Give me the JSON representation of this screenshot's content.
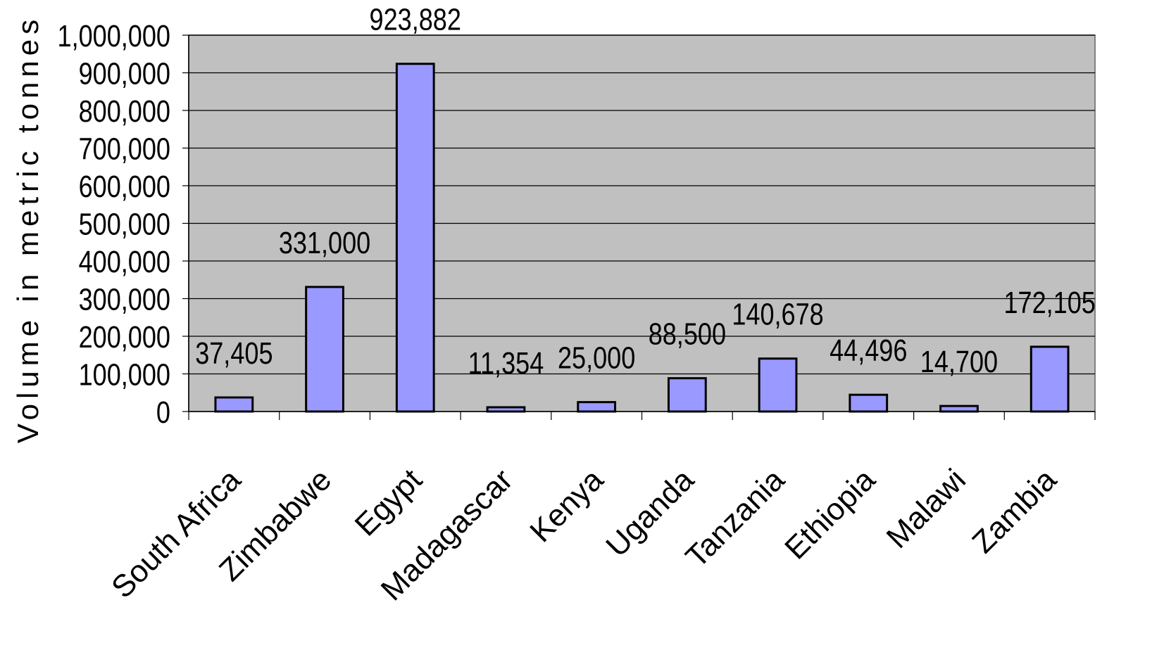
{
  "chart_data": {
    "type": "bar",
    "title": "",
    "xlabel": "",
    "ylabel": "Volume in metric tonnes",
    "categories": [
      "South Africa",
      "Zimbabwe",
      "Egypt",
      "Madagascar",
      "Kenya",
      "Uganda",
      "Tanzania",
      "Ethiopia",
      "Malawi",
      "Zambia"
    ],
    "values": [
      37405,
      331000,
      923882,
      11354,
      25000,
      88500,
      140678,
      44496,
      14700,
      172105
    ],
    "data_labels": [
      "37,405",
      "331,000",
      "923,882",
      "11,354",
      "25,000",
      "88,500",
      "140,678",
      "44,496",
      "14,700",
      "172,105"
    ],
    "ylim": [
      0,
      1000000
    ],
    "yticks": [
      0,
      100000,
      200000,
      300000,
      400000,
      500000,
      600000,
      700000,
      800000,
      900000,
      1000000
    ],
    "ytick_labels": [
      "0",
      "100,000",
      "200,000",
      "300,000",
      "400,000",
      "500,000",
      "600,000",
      "700,000",
      "800,000",
      "900,000",
      "1,000,000"
    ],
    "grid": "horizontal",
    "legend": "none",
    "colors": {
      "plot_background": "#c0c0c0",
      "bar_fill": "#9999ff",
      "bar_stroke": "#000000",
      "gridline": "#000000"
    }
  }
}
